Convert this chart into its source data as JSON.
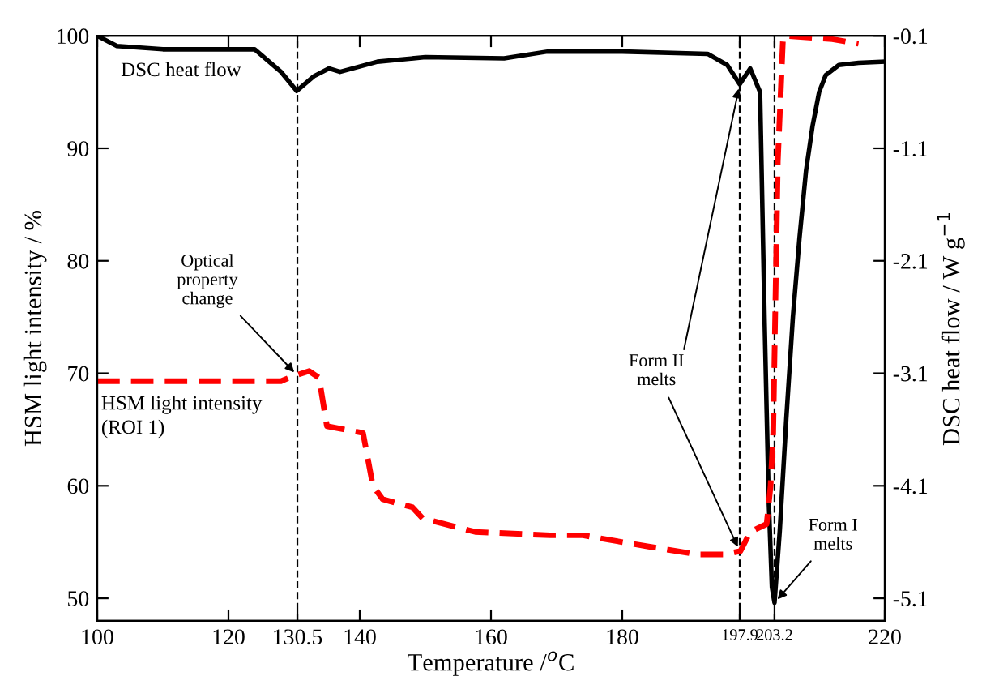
{
  "chart_data": {
    "type": "line",
    "xlabel": "Temperature /$^{o}$C",
    "ylabel": "HSM light intensity / %",
    "y2label": "DSC heat flow / W g$^{−1}$",
    "xlim": [
      100,
      220
    ],
    "xticks": [
      100,
      120,
      130.5,
      140,
      160,
      180,
      197.9,
      203.2,
      220
    ],
    "ylim": [
      48,
      100
    ],
    "yticks": [
      50,
      60,
      70,
      80,
      90,
      100
    ],
    "y2lim": [
      -5.3,
      -0.1
    ],
    "y2ticks": [
      -5.1,
      -4.1,
      -3.1,
      -2.1,
      -1.1,
      -0.1
    ],
    "grid": false,
    "legend": false,
    "series": [
      {
        "color": "#000000",
        "axis": "y2",
        "line_style": "solid",
        "x": [
          100,
          103,
          110,
          120,
          124,
          128,
          130.4,
          133,
          135.3,
          137,
          142.7,
          150,
          162,
          168.6,
          180,
          193,
          196,
          197.9,
          199.5,
          201,
          201.7,
          202.3,
          202.8,
          203.2,
          204,
          205,
          206,
          207,
          208,
          209,
          210,
          211,
          213,
          216,
          220
        ],
        "values": [
          -0.1,
          -0.19,
          -0.22,
          -0.22,
          -0.22,
          -0.42,
          -0.59,
          -0.46,
          -0.39,
          -0.42,
          -0.33,
          -0.29,
          -0.3,
          -0.24,
          -0.24,
          -0.26,
          -0.36,
          -0.53,
          -0.39,
          -0.6,
          -2.66,
          -4.2,
          -5.0,
          -5.14,
          -4.5,
          -3.5,
          -2.6,
          -1.9,
          -1.3,
          -0.9,
          -0.6,
          -0.45,
          -0.36,
          -0.34,
          -0.33
        ]
      },
      {
        "color": "#ff0000",
        "axis": "y",
        "line_style": "dashed",
        "x": [
          100,
          110,
          120,
          128,
          129.6,
          132.3,
          133.8,
          135,
          140.5,
          142,
          143.5,
          148,
          149.6,
          157.6,
          169,
          174,
          184,
          191.4,
          195.6,
          198,
          199.5,
          202,
          202.6,
          203,
          203.7,
          204.5,
          205,
          212,
          216
        ],
        "values": [
          69.3,
          69.3,
          69.3,
          69.3,
          69.7,
          70.2,
          69.6,
          65.3,
          64.7,
          60,
          58.8,
          58.1,
          57.1,
          55.9,
          55.6,
          55.6,
          54.6,
          53.9,
          53.9,
          54.2,
          55.9,
          56.6,
          60,
          64.7,
          88.8,
          99.9,
          100,
          99.7,
          99.3
        ]
      }
    ],
    "ref_lines": [
      {
        "axis": "x",
        "value": 130.5,
        "color": "#000000",
        "line_style": "dashed"
      },
      {
        "axis": "x",
        "value": 197.9,
        "color": "#000000",
        "line_style": "dashed"
      },
      {
        "axis": "x",
        "value": 203.2,
        "color": "#000000",
        "line_style": "dashed"
      }
    ],
    "annotations": [
      "DSC heat flow",
      "HSM light intensity\n(ROI 1)",
      {
        "text": "Optical\nproperty\nchange",
        "x": 130.5,
        "y": 69.8
      },
      {
        "text": "Form II\nmelts",
        "x": 197.9,
        "y": 54.2
      },
      {
        "text": "Form I\nmelts",
        "x": 203.2,
        "y": 49.6
      }
    ]
  }
}
